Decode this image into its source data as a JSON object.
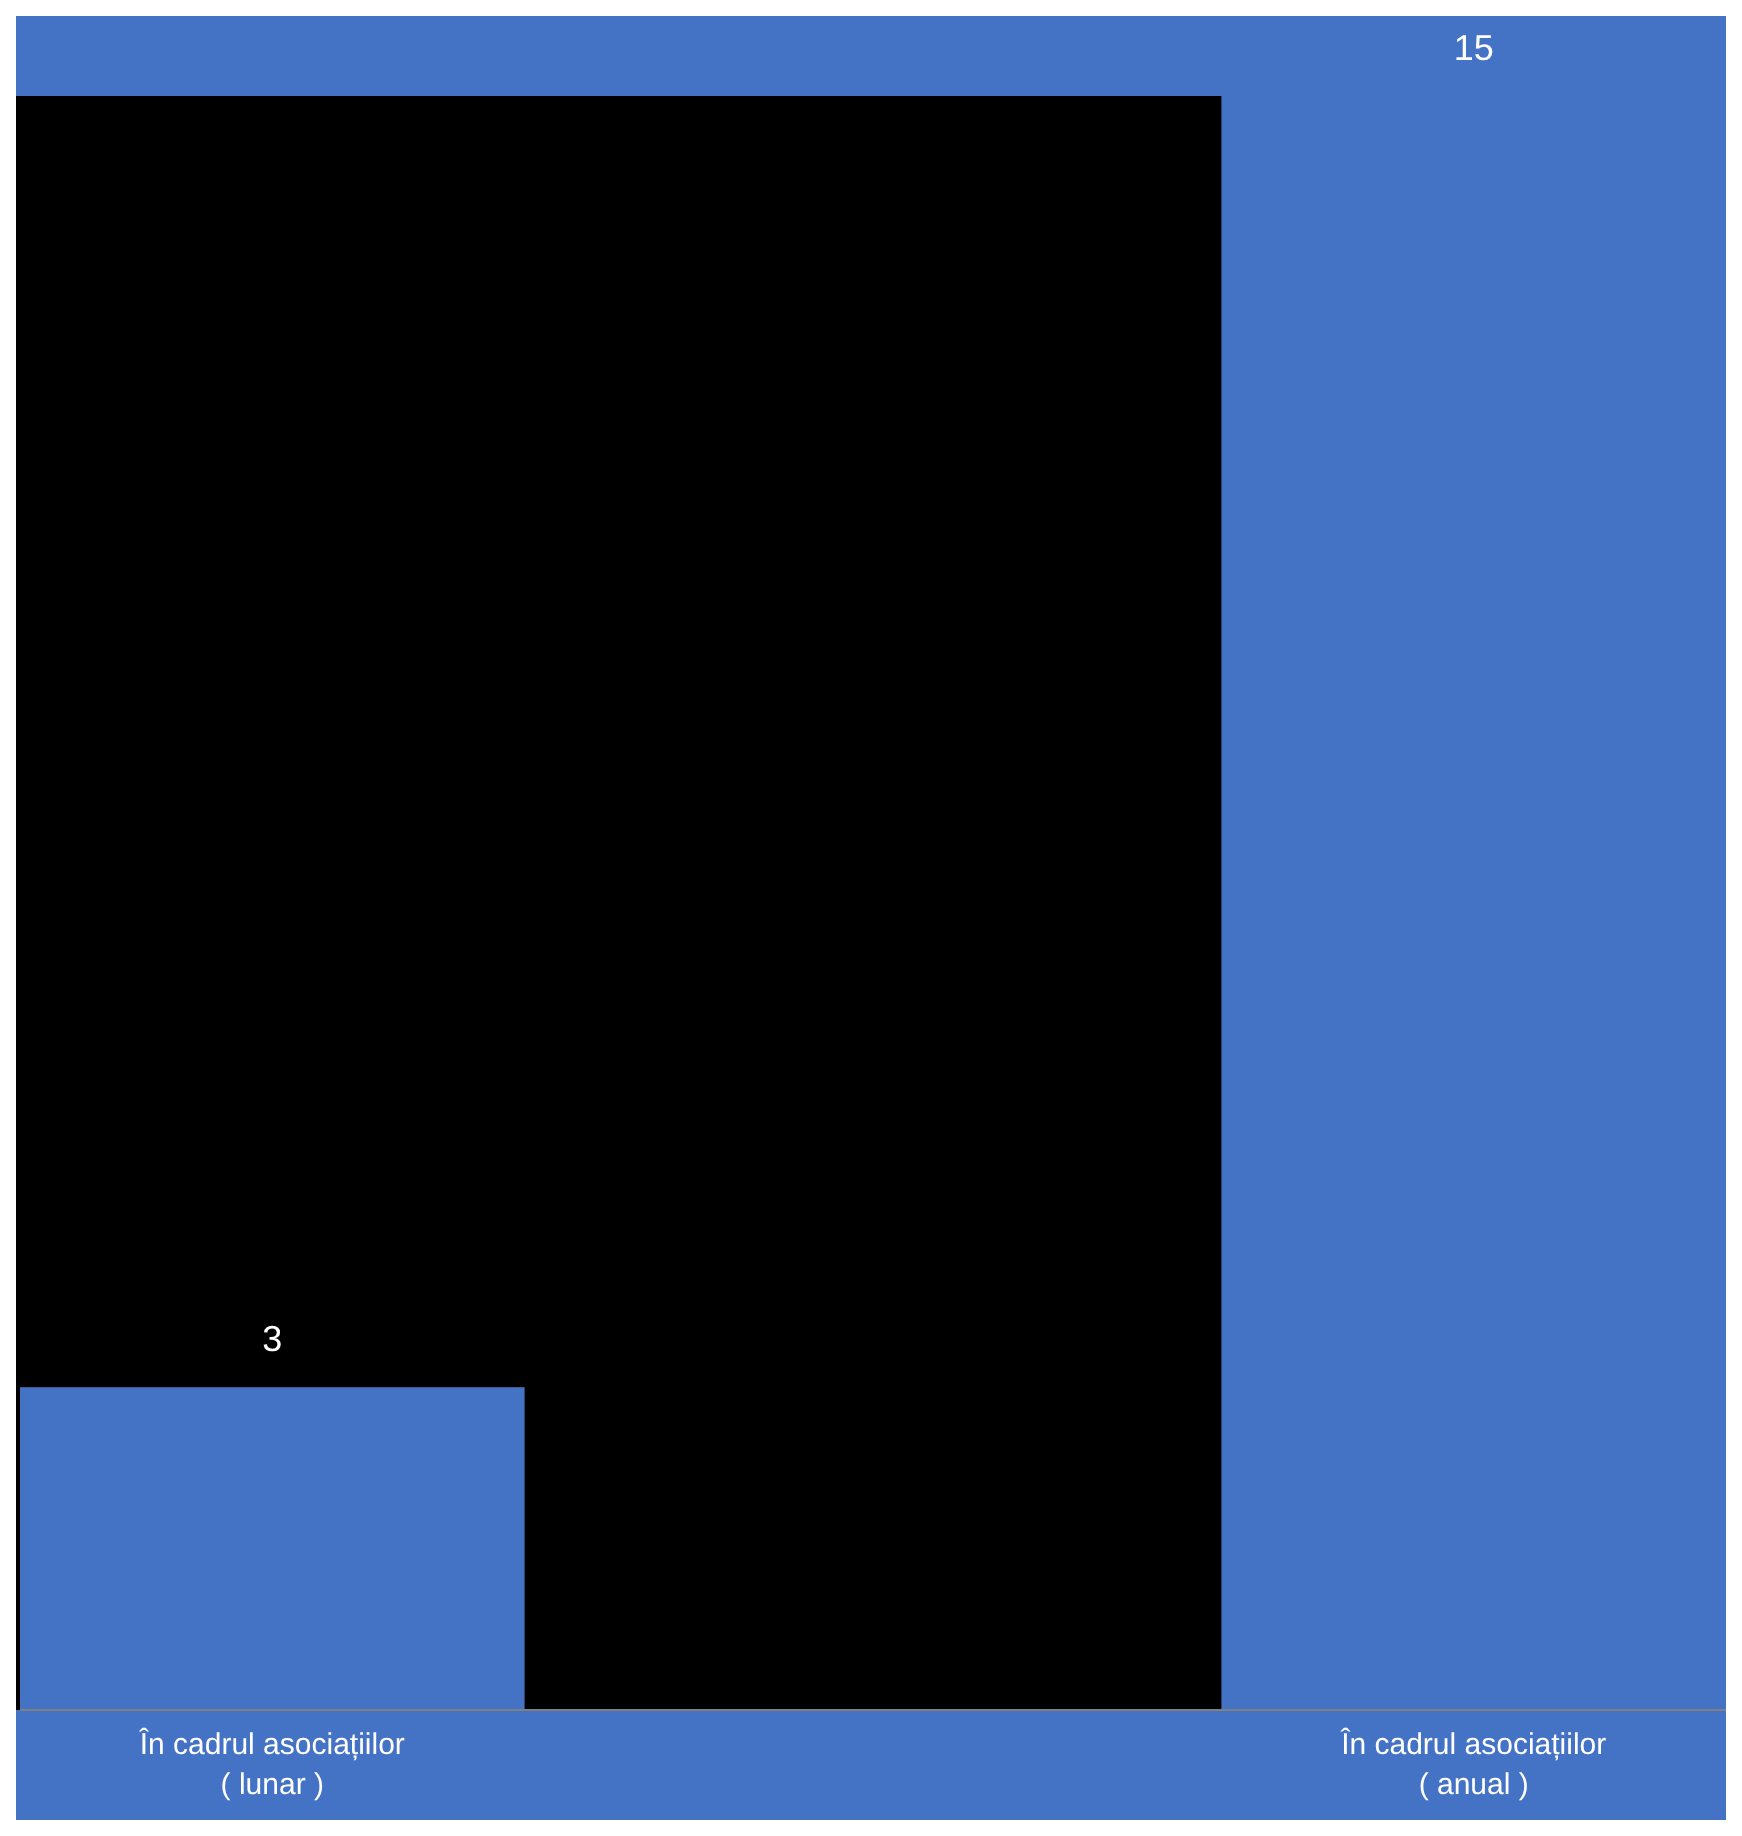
{
  "chart_data": {
    "type": "bar",
    "categories": [
      "În cadrul asociațiilor\n( lunar )",
      "În cadrul asociațiilor\n( anual )"
    ],
    "values": [
      3,
      15
    ],
    "color": "#4472c4",
    "data_labels": true
  }
}
